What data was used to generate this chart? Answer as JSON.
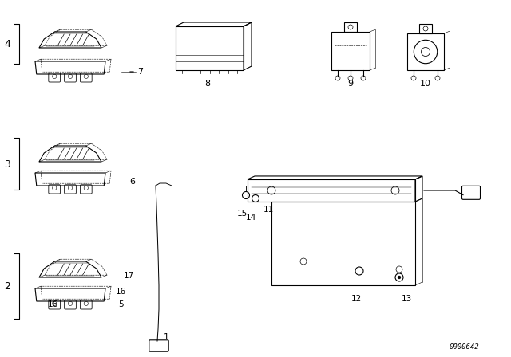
{
  "background_color": "#ffffff",
  "diagram_color": "#000000",
  "part_number": "0000642"
}
